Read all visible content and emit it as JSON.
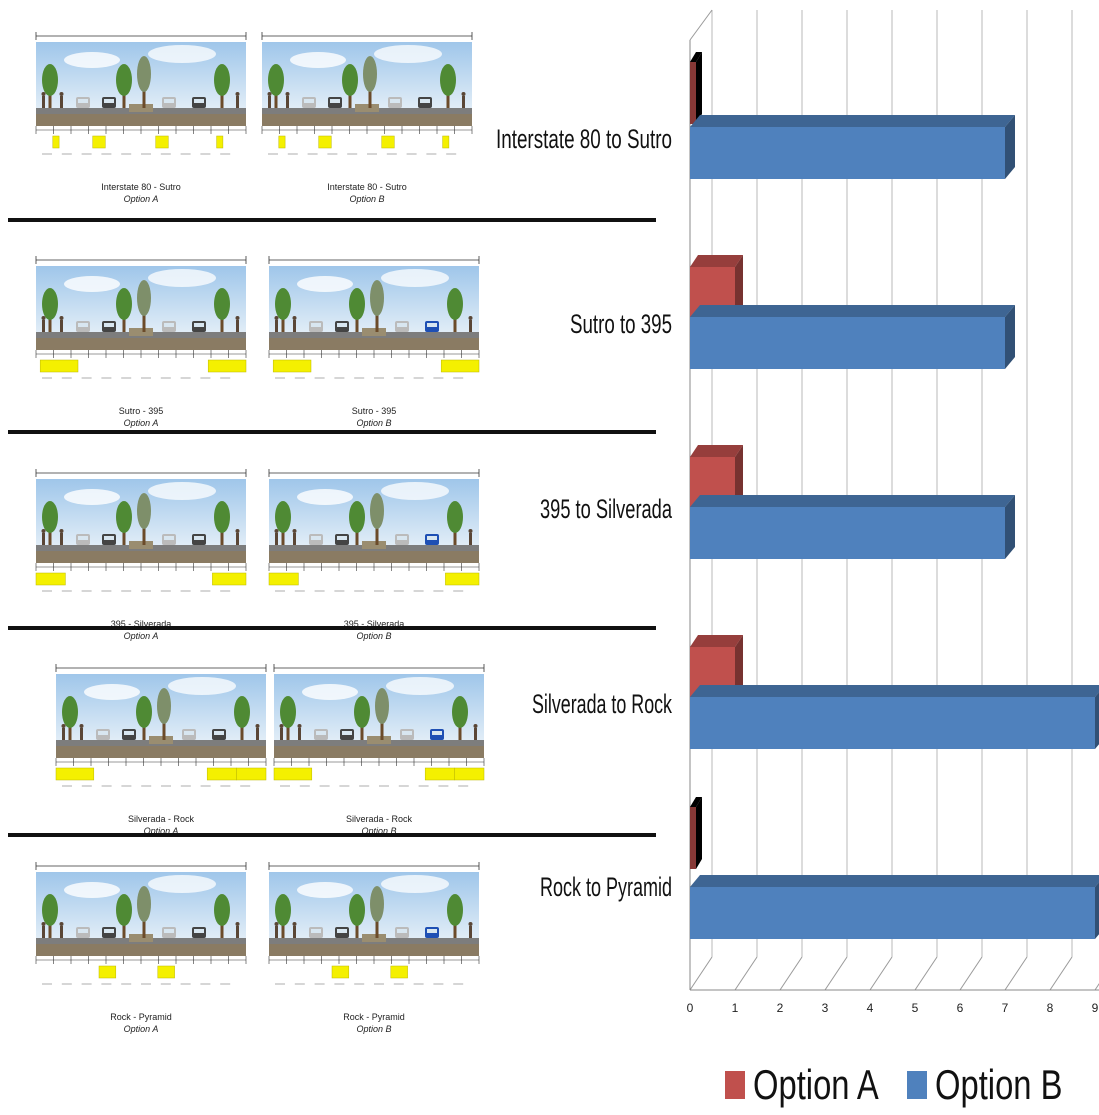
{
  "cross_sections": [
    {
      "option_a": {
        "title": "Interstate 80 - Sutro",
        "option": "Option A"
      },
      "option_b": {
        "title": "Interstate 80 - Sutro",
        "option": "Option B"
      }
    },
    {
      "option_a": {
        "title": "Sutro - 395",
        "option": "Option A"
      },
      "option_b": {
        "title": "Sutro - 395",
        "option": "Option B"
      }
    },
    {
      "option_a": {
        "title": "395 - Silverada",
        "option": "Option A"
      },
      "option_b": {
        "title": "395 - Silverada",
        "option": "Option B"
      }
    },
    {
      "option_a": {
        "title": "Silverada - Rock",
        "option": "Option A"
      },
      "option_b": {
        "title": "Silverada - Rock",
        "option": "Option B"
      }
    },
    {
      "option_a": {
        "title": "Rock - Pyramid",
        "option": "Option A"
      },
      "option_b": {
        "title": "Rock - Pyramid",
        "option": "Option B"
      }
    }
  ],
  "chart_data": {
    "type": "bar",
    "orientation": "horizontal",
    "three_d": true,
    "categories": [
      "Interstate 80 to Sutro",
      "Sutro to 395",
      "395 to Silverada",
      "Silverada to Rock",
      "Rock to Pyramid"
    ],
    "series": [
      {
        "name": "Option A",
        "color": "#c0504d",
        "values": [
          0,
          1,
          1,
          1,
          0
        ]
      },
      {
        "name": "Option B",
        "color": "#4f81bd",
        "values": [
          7,
          7,
          7,
          9,
          9
        ]
      }
    ],
    "x_ticks": [
      0,
      1,
      2,
      3,
      4,
      5,
      6,
      7,
      8,
      9
    ],
    "xlim": [
      0,
      9
    ],
    "grid": true,
    "legend_position": "bottom"
  }
}
